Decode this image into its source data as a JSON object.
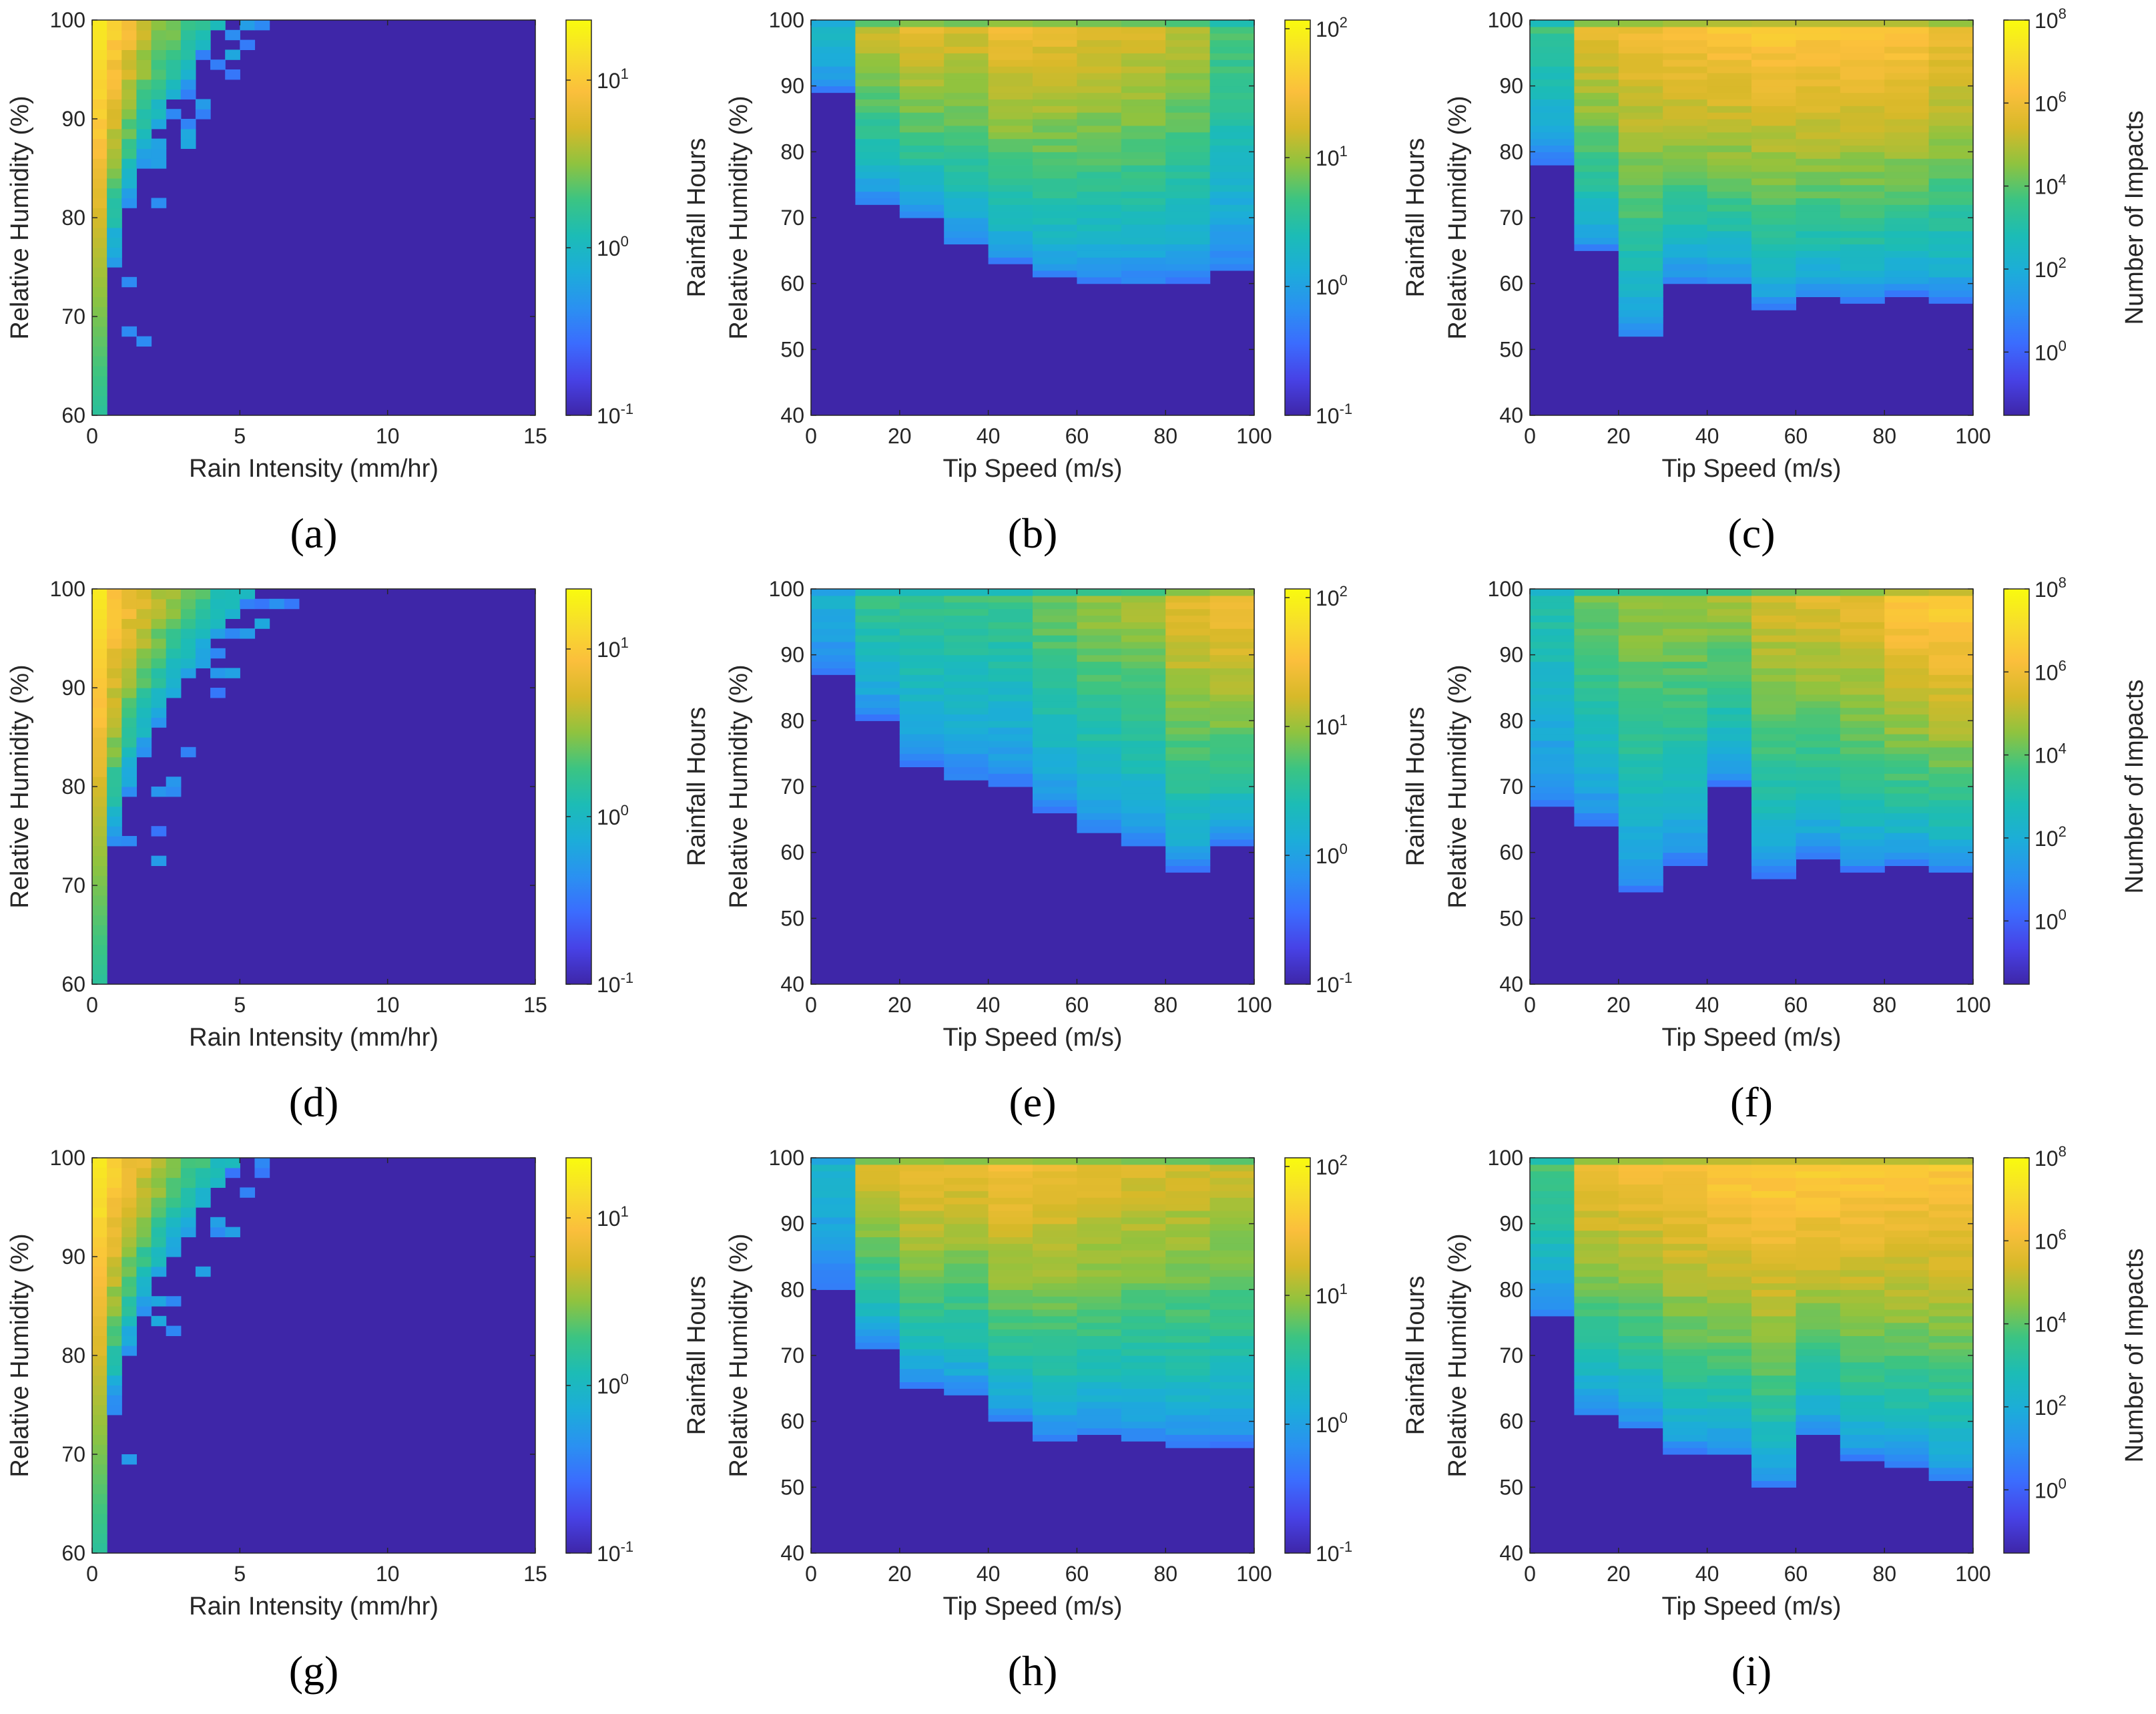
{
  "colormap": [
    "#3e26a8",
    "#4742e6",
    "#3b6cfe",
    "#2a91f1",
    "#1cadd9",
    "#1cbcb6",
    "#3bc483",
    "#8fc33f",
    "#d7b929",
    "#fbbf3c",
    "#f7dd2c",
    "#f9fb0e"
  ],
  "chart_data": [
    {
      "id": "a",
      "type": "heatmap",
      "label": "(a)",
      "x_kind": "rain",
      "xlabel": "Rain Intensity (mm/hr)",
      "ylabel": "Relative Humidity (%)",
      "xlim": [
        0,
        15
      ],
      "ylim": [
        60,
        100
      ],
      "x_ticks": [
        0,
        5,
        10,
        15
      ],
      "y_ticks": [
        60,
        70,
        80,
        90,
        100
      ],
      "colorbar_label": "Rainfall Hours",
      "colorbar_scale": "log",
      "colorbar_ticks": [
        {
          "base": "10",
          "exp": "-1",
          "pos": 0.0
        },
        {
          "base": "10",
          "exp": "0",
          "pos": 0.424
        },
        {
          "base": "10",
          "exp": "1",
          "pos": 0.848
        }
      ],
      "pattern": {
        "k": 4.2,
        "spread": 1.0,
        "vmax": 0.95
      }
    },
    {
      "id": "b",
      "type": "heatmap",
      "label": "(b)",
      "x_kind": "tip",
      "xlabel": "Tip Speed (m/s)",
      "ylabel": "Relative Humidity (%)",
      "xlim": [
        0,
        100
      ],
      "ylim": [
        40,
        100
      ],
      "x_ticks": [
        0,
        20,
        40,
        60,
        80,
        100
      ],
      "y_ticks": [
        40,
        50,
        60,
        70,
        80,
        90,
        100
      ],
      "colorbar_label": "Rainfall Hours",
      "colorbar_scale": "log",
      "colorbar_ticks": [
        {
          "base": "10",
          "exp": "-1",
          "pos": 0.0
        },
        {
          "base": "10",
          "exp": "0",
          "pos": 0.326
        },
        {
          "base": "10",
          "exp": "1",
          "pos": 0.652
        },
        {
          "base": "10",
          "exp": "2",
          "pos": 0.978
        }
      ],
      "pattern": {
        "thresholds": [
          89,
          72,
          70,
          66,
          63,
          61,
          60,
          60,
          60,
          62
        ],
        "peak": [
          0.45,
          0.72,
          0.78,
          0.75,
          0.8,
          0.78,
          0.76,
          0.74,
          0.7,
          0.58
        ]
      }
    },
    {
      "id": "c",
      "type": "heatmap",
      "label": "(c)",
      "x_kind": "tip",
      "xlabel": "Tip Speed (m/s)",
      "ylabel": "Relative Humidity (%)",
      "xlim": [
        0,
        100
      ],
      "ylim": [
        40,
        100
      ],
      "x_ticks": [
        0,
        20,
        40,
        60,
        80,
        100
      ],
      "y_ticks": [
        40,
        50,
        60,
        70,
        80,
        90,
        100
      ],
      "colorbar_label": "Number of Impacts",
      "colorbar_scale": "log",
      "colorbar_ticks": [
        {
          "base": "10",
          "exp": "8",
          "pos": 1.0
        },
        {
          "base": "10",
          "exp": "6",
          "pos": 0.79
        },
        {
          "base": "10",
          "exp": "4",
          "pos": 0.58
        },
        {
          "base": "10",
          "exp": "2",
          "pos": 0.37
        },
        {
          "base": "10",
          "exp": "0",
          "pos": 0.16
        }
      ],
      "pattern": {
        "thresholds": [
          78,
          65,
          52,
          60,
          60,
          56,
          58,
          57,
          58,
          57
        ],
        "peak": [
          0.55,
          0.78,
          0.8,
          0.83,
          0.85,
          0.86,
          0.86,
          0.86,
          0.85,
          0.8
        ]
      }
    },
    {
      "id": "d",
      "type": "heatmap",
      "label": "(d)",
      "x_kind": "rain",
      "xlabel": "Rain Intensity (mm/hr)",
      "ylabel": "Relative Humidity (%)",
      "xlim": [
        0,
        15
      ],
      "ylim": [
        60,
        100
      ],
      "x_ticks": [
        0,
        5,
        10,
        15
      ],
      "y_ticks": [
        60,
        70,
        80,
        90,
        100
      ],
      "colorbar_label": "Rainfall Hours",
      "colorbar_scale": "log",
      "colorbar_ticks": [
        {
          "base": "10",
          "exp": "-1",
          "pos": 0.0
        },
        {
          "base": "10",
          "exp": "0",
          "pos": 0.424
        },
        {
          "base": "10",
          "exp": "1",
          "pos": 0.848
        }
      ],
      "pattern": {
        "k": 4.8,
        "spread": 1.1,
        "vmax": 0.93
      }
    },
    {
      "id": "e",
      "type": "heatmap",
      "label": "(e)",
      "x_kind": "tip",
      "xlabel": "Tip Speed (m/s)",
      "ylabel": "Relative Humidity (%)",
      "xlim": [
        0,
        100
      ],
      "ylim": [
        40,
        100
      ],
      "x_ticks": [
        0,
        20,
        40,
        60,
        80,
        100
      ],
      "y_ticks": [
        40,
        50,
        60,
        70,
        80,
        90,
        100
      ],
      "colorbar_label": "Rainfall Hours",
      "colorbar_scale": "log",
      "colorbar_ticks": [
        {
          "base": "10",
          "exp": "-1",
          "pos": 0.0
        },
        {
          "base": "10",
          "exp": "0",
          "pos": 0.326
        },
        {
          "base": "10",
          "exp": "1",
          "pos": 0.652
        },
        {
          "base": "10",
          "exp": "2",
          "pos": 0.978
        }
      ],
      "pattern": {
        "thresholds": [
          87,
          80,
          73,
          71,
          70,
          66,
          63,
          61,
          57,
          61
        ],
        "peak": [
          0.4,
          0.55,
          0.55,
          0.55,
          0.55,
          0.62,
          0.66,
          0.68,
          0.78,
          0.82
        ]
      }
    },
    {
      "id": "f",
      "type": "heatmap",
      "label": "(f)",
      "x_kind": "tip",
      "xlabel": "Tip Speed (m/s)",
      "ylabel": "Relative Humidity (%)",
      "xlim": [
        0,
        100
      ],
      "ylim": [
        40,
        100
      ],
      "x_ticks": [
        0,
        20,
        40,
        60,
        80,
        100
      ],
      "y_ticks": [
        40,
        50,
        60,
        70,
        80,
        90,
        100
      ],
      "colorbar_label": "Number of Impacts",
      "colorbar_scale": "log",
      "colorbar_ticks": [
        {
          "base": "10",
          "exp": "8",
          "pos": 1.0
        },
        {
          "base": "10",
          "exp": "6",
          "pos": 0.79
        },
        {
          "base": "10",
          "exp": "4",
          "pos": 0.58
        },
        {
          "base": "10",
          "exp": "2",
          "pos": 0.37
        },
        {
          "base": "10",
          "exp": "0",
          "pos": 0.16
        }
      ],
      "pattern": {
        "thresholds": [
          67,
          64,
          54,
          58,
          70,
          56,
          59,
          57,
          58,
          57
        ],
        "peak": [
          0.5,
          0.62,
          0.66,
          0.66,
          0.68,
          0.74,
          0.76,
          0.78,
          0.86,
          0.88
        ]
      }
    },
    {
      "id": "g",
      "type": "heatmap",
      "label": "(g)",
      "x_kind": "rain",
      "xlabel": "Rain Intensity (mm/hr)",
      "ylabel": "Relative Humidity (%)",
      "xlim": [
        0,
        15
      ],
      "ylim": [
        60,
        100
      ],
      "x_ticks": [
        0,
        5,
        10,
        15
      ],
      "y_ticks": [
        60,
        70,
        80,
        90,
        100
      ],
      "colorbar_label": "Rainfall Hours",
      "colorbar_scale": "log",
      "colorbar_ticks": [
        {
          "base": "10",
          "exp": "-1",
          "pos": 0.0
        },
        {
          "base": "10",
          "exp": "0",
          "pos": 0.424
        },
        {
          "base": "10",
          "exp": "1",
          "pos": 0.848
        }
      ],
      "pattern": {
        "k": 4.4,
        "spread": 1.05,
        "vmax": 0.95
      }
    },
    {
      "id": "h",
      "type": "heatmap",
      "label": "(h)",
      "x_kind": "tip",
      "xlabel": "Tip Speed (m/s)",
      "ylabel": "Relative Humidity (%)",
      "xlim": [
        0,
        100
      ],
      "ylim": [
        40,
        100
      ],
      "x_ticks": [
        0,
        20,
        40,
        60,
        80,
        100
      ],
      "y_ticks": [
        40,
        50,
        60,
        70,
        80,
        90,
        100
      ],
      "colorbar_label": "Rainfall Hours",
      "colorbar_scale": "log",
      "colorbar_ticks": [
        {
          "base": "10",
          "exp": "-1",
          "pos": 0.0
        },
        {
          "base": "10",
          "exp": "0",
          "pos": 0.326
        },
        {
          "base": "10",
          "exp": "1",
          "pos": 0.652
        },
        {
          "base": "10",
          "exp": "2",
          "pos": 0.978
        }
      ],
      "pattern": {
        "thresholds": [
          80,
          71,
          65,
          64,
          60,
          57,
          58,
          57,
          56,
          56
        ],
        "peak": [
          0.42,
          0.76,
          0.8,
          0.78,
          0.82,
          0.8,
          0.78,
          0.76,
          0.74,
          0.72
        ]
      }
    },
    {
      "id": "i",
      "type": "heatmap",
      "label": "(i)",
      "x_kind": "tip",
      "xlabel": "Tip Speed (m/s)",
      "ylabel": "Relative Humidity (%)",
      "xlim": [
        0,
        100
      ],
      "ylim": [
        40,
        100
      ],
      "x_ticks": [
        0,
        20,
        40,
        60,
        80,
        100
      ],
      "y_ticks": [
        40,
        50,
        60,
        70,
        80,
        90,
        100
      ],
      "colorbar_label": "Number of Impacts",
      "colorbar_scale": "log",
      "colorbar_ticks": [
        {
          "base": "10",
          "exp": "8",
          "pos": 1.0
        },
        {
          "base": "10",
          "exp": "6",
          "pos": 0.79
        },
        {
          "base": "10",
          "exp": "4",
          "pos": 0.58
        },
        {
          "base": "10",
          "exp": "2",
          "pos": 0.37
        },
        {
          "base": "10",
          "exp": "0",
          "pos": 0.16
        }
      ],
      "pattern": {
        "thresholds": [
          76,
          61,
          59,
          55,
          55,
          50,
          58,
          54,
          53,
          51
        ],
        "peak": [
          0.58,
          0.8,
          0.82,
          0.84,
          0.87,
          0.88,
          0.88,
          0.87,
          0.86,
          0.85
        ]
      }
    }
  ]
}
